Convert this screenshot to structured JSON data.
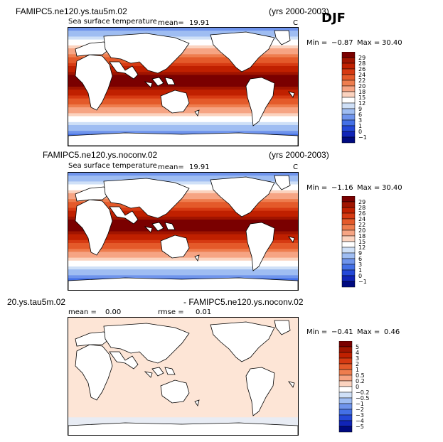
{
  "season": "DJF",
  "panels": [
    {
      "title_left": "FAMIPC5.ne120.ys.tau5m.02",
      "title_right": "(yrs 2000-2003)",
      "subtitle": "Sea surface temperature",
      "mean_label": "mean=",
      "mean_value": "19.91",
      "unit": "C",
      "min_label": "Min =",
      "min_value": "−0.87",
      "max_label": "Max =",
      "max_value": "30.40",
      "field": "sst"
    },
    {
      "title_left": "FAMIPC5.ne120.ys.noconv.02",
      "title_right": "(yrs 2000-2003)",
      "subtitle": "Sea surface temperature",
      "mean_label": "mean=",
      "mean_value": "19.91",
      "unit": "C",
      "min_label": "Min =",
      "min_value": "−1.16",
      "max_label": "Max =",
      "max_value": "30.40",
      "field": "sst"
    },
    {
      "title_left": "20.ys.tau5m.02",
      "title_right": "- FAMIPC5.ne120.ys.noconv.02",
      "mean_label": "mean =",
      "mean_value": "0.00",
      "rmse_label": "rmse =",
      "rmse_value": "0.01",
      "min_label": "Min =",
      "min_value": "−0.41",
      "max_label": "Max =",
      "max_value": "0.46",
      "field": "diff"
    }
  ],
  "colorbar_sst": {
    "labels": [
      "29",
      "28",
      "26",
      "24",
      "22",
      "20",
      "18",
      "15",
      "12",
      "9",
      "6",
      "3",
      "1",
      "0",
      "−1"
    ],
    "colors": [
      "#7a0000",
      "#a01400",
      "#c02000",
      "#d63a12",
      "#e45a2a",
      "#ee7d4e",
      "#f6a483",
      "#fbd3bf",
      "#ffffff",
      "#cfe0f7",
      "#9fbdf2",
      "#6f94ec",
      "#4470e6",
      "#2448d8",
      "#1024b8",
      "#000a80"
    ]
  },
  "colorbar_diff": {
    "labels": [
      "5",
      "4",
      "3",
      "2",
      "1",
      "0.5",
      "0.2",
      "0",
      "−0.2",
      "−0.5",
      "−1",
      "−2",
      "−3",
      "−4",
      "−5"
    ],
    "colors": [
      "#7a0000",
      "#a01400",
      "#c02000",
      "#d63a12",
      "#e45a2a",
      "#ee7d4e",
      "#f6a483",
      "#fbd3bf",
      "#ffffff",
      "#cfe0f7",
      "#9fbdf2",
      "#6f94ec",
      "#4470e6",
      "#2448d8",
      "#1024b8",
      "#000a80"
    ]
  },
  "chart_data": [
    {
      "type": "heatmap",
      "title": "FAMIPC5.ne120.ys.tau5m.02",
      "subtitle": "Sea surface temperature",
      "season": "DJF",
      "years": "(yrs 2000-2003)",
      "units": "C",
      "mean": 19.91,
      "min": -0.87,
      "max": 30.4,
      "levels": [
        -1,
        0,
        1,
        3,
        6,
        9,
        12,
        15,
        18,
        20,
        22,
        24,
        26,
        28,
        29
      ]
    },
    {
      "type": "heatmap",
      "title": "FAMIPC5.ne120.ys.noconv.02",
      "subtitle": "Sea surface temperature",
      "season": "DJF",
      "years": "(yrs 2000-2003)",
      "units": "C",
      "mean": 19.91,
      "min": -1.16,
      "max": 30.4,
      "levels": [
        -1,
        0,
        1,
        3,
        6,
        9,
        12,
        15,
        18,
        20,
        22,
        24,
        26,
        28,
        29
      ]
    },
    {
      "type": "heatmap",
      "title": "20.ys.tau5m.02 - FAMIPC5.ne120.ys.noconv.02",
      "mean": 0.0,
      "rmse": 0.01,
      "min": -0.41,
      "max": 0.46,
      "levels": [
        -5,
        -4,
        -3,
        -2,
        -1,
        -0.5,
        -0.2,
        0,
        0.2,
        0.5,
        1,
        2,
        3,
        4,
        5
      ]
    }
  ]
}
